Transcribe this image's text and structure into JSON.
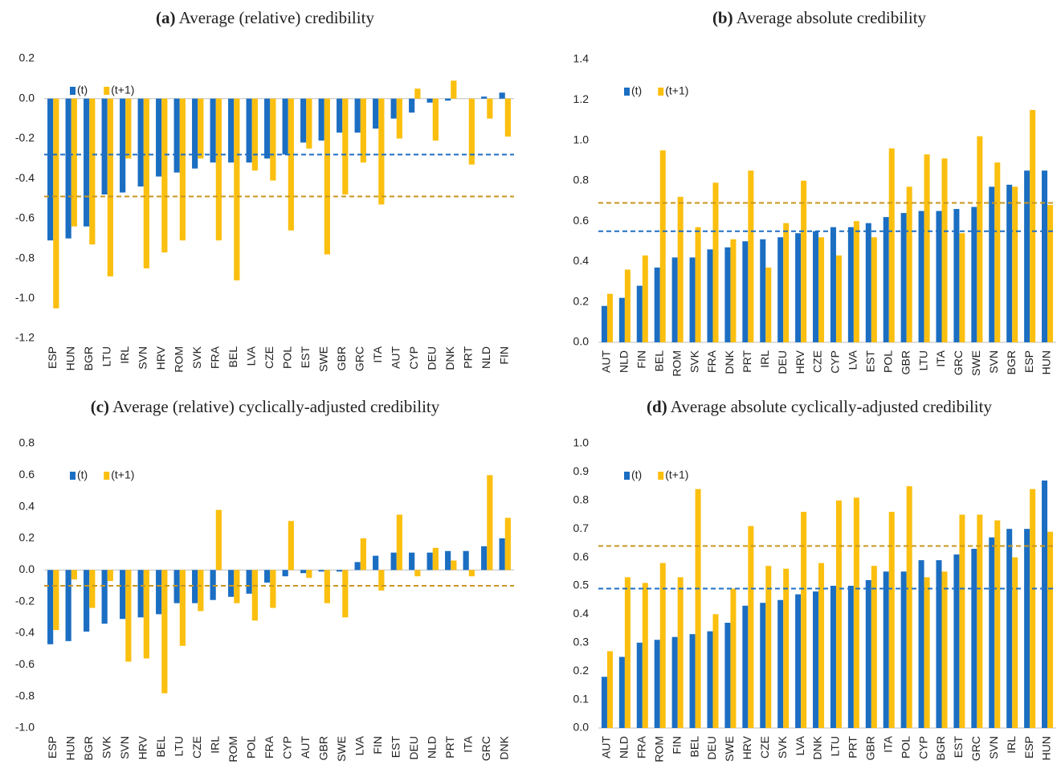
{
  "chart_data": [
    {
      "type": "bar",
      "panel": "(a)",
      "title": "Average (relative) credibility",
      "categories": [
        "ESP",
        "HUN",
        "BGR",
        "LTU",
        "IRL",
        "SVN",
        "HRV",
        "ROM",
        "SVK",
        "FRA",
        "BEL",
        "LVA",
        "CZE",
        "POL",
        "EST",
        "SWE",
        "GBR",
        "GRC",
        "ITA",
        "AUT",
        "CYP",
        "DEU",
        "DNK",
        "PRT",
        "NLD",
        "FIN"
      ],
      "series": [
        {
          "name": "(t)",
          "color": "#1b6ec2",
          "mean": -0.28,
          "mean_color": "#1f6fc4",
          "values": [
            -0.71,
            -0.7,
            -0.64,
            -0.48,
            -0.47,
            -0.44,
            -0.39,
            -0.37,
            -0.35,
            -0.32,
            -0.32,
            -0.32,
            -0.3,
            -0.28,
            -0.22,
            -0.21,
            -0.17,
            -0.17,
            -0.15,
            -0.1,
            -0.07,
            -0.02,
            -0.01,
            0.0,
            0.01,
            0.03
          ]
        },
        {
          "name": "(t+1)",
          "color": "#fbbf0f",
          "mean": -0.49,
          "mean_color": "#c8961e",
          "values": [
            -1.05,
            -0.64,
            -0.73,
            -0.89,
            -0.3,
            -0.85,
            -0.77,
            -0.71,
            -0.3,
            -0.71,
            -0.91,
            -0.36,
            -0.41,
            -0.66,
            -0.25,
            -0.78,
            -0.48,
            -0.32,
            -0.53,
            -0.2,
            0.05,
            -0.21,
            0.09,
            -0.33,
            -0.1,
            -0.19
          ]
        }
      ],
      "ylim": [
        -1.2,
        0.2
      ],
      "yticks": [
        -1.2,
        {
          "value": -1.0,
          "label": "-1.0"
        },
        -0.8,
        -0.6,
        -0.4,
        -0.2,
        {
          "value": 0,
          "label": "0.0"
        },
        0.2
      ],
      "legend": "upper left"
    },
    {
      "type": "bar",
      "panel": "(b)",
      "title": "Average absolute credibility",
      "categories": [
        "AUT",
        "NLD",
        "FIN",
        "BEL",
        "ROM",
        "SVK",
        "FRA",
        "DNK",
        "PRT",
        "IRL",
        "DEU",
        "HRV",
        "CZE",
        "CYP",
        "LVA",
        "EST",
        "POL",
        "GBR",
        "LTU",
        "ITA",
        "GRC",
        "SWE",
        "SVN",
        "BGR",
        "ESP",
        "HUN"
      ],
      "series": [
        {
          "name": "(t)",
          "color": "#1b6ec2",
          "mean": 0.55,
          "mean_color": "#1f6fc4",
          "values": [
            0.18,
            0.22,
            0.28,
            0.37,
            0.42,
            0.42,
            0.46,
            0.47,
            0.5,
            0.51,
            0.52,
            0.54,
            0.55,
            0.57,
            0.57,
            0.59,
            0.62,
            0.64,
            0.65,
            0.65,
            0.66,
            0.67,
            0.77,
            0.78,
            0.85,
            0.85
          ]
        },
        {
          "name": "(t+1)",
          "color": "#fbbf0f",
          "mean": 0.69,
          "mean_color": "#c8961e",
          "values": [
            0.24,
            0.36,
            0.43,
            0.95,
            0.72,
            0.57,
            0.79,
            0.51,
            0.85,
            0.37,
            0.59,
            0.8,
            0.52,
            0.43,
            0.6,
            0.52,
            0.96,
            0.77,
            0.93,
            0.91,
            0.54,
            1.02,
            0.89,
            0.77,
            1.15,
            0.68
          ]
        }
      ],
      "ylim": [
        0,
        1.4
      ],
      "yticks": [
        {
          "value": 0,
          "label": "0.0"
        },
        0.2,
        0.4,
        0.6,
        0.8,
        {
          "value": 1.0,
          "label": "1.0"
        },
        1.2,
        1.4
      ],
      "legend": "upper left"
    },
    {
      "type": "bar",
      "panel": "(c)",
      "title": "Average (relative) cyclically-adjusted credibility",
      "categories": [
        "ESP",
        "HUN",
        "BGR",
        "SVK",
        "SVN",
        "HRV",
        "BEL",
        "LTU",
        "CZE",
        "IRL",
        "ROM",
        "POL",
        "FRA",
        "CYP",
        "AUT",
        "GBR",
        "SWE",
        "LVA",
        "FIN",
        "EST",
        "DEU",
        "NLD",
        "PRT",
        "ITA",
        "GRC",
        "DNK"
      ],
      "series": [
        {
          "name": "(t)",
          "color": "#1b6ec2",
          "mean": -0.1,
          "mean_color": "#1f6fc4",
          "values": [
            -0.47,
            -0.45,
            -0.39,
            -0.34,
            -0.31,
            -0.3,
            -0.28,
            -0.21,
            -0.21,
            -0.19,
            -0.17,
            -0.15,
            -0.08,
            -0.04,
            -0.02,
            -0.01,
            -0.01,
            0.05,
            0.09,
            0.11,
            0.11,
            0.11,
            0.12,
            0.12,
            0.15,
            0.2
          ]
        },
        {
          "name": "(t+1)",
          "color": "#fbbf0f",
          "mean": -0.1,
          "mean_color": "#c8961e",
          "values": [
            -0.38,
            -0.06,
            -0.24,
            -0.07,
            -0.58,
            -0.56,
            -0.78,
            -0.48,
            -0.26,
            0.38,
            -0.21,
            -0.32,
            -0.24,
            0.31,
            -0.05,
            -0.21,
            -0.3,
            0.2,
            -0.13,
            0.35,
            -0.04,
            0.14,
            0.06,
            -0.04,
            0.6,
            0.33
          ]
        }
      ],
      "ylim": [
        -1.0,
        0.8
      ],
      "yticks": [
        {
          "value": -1.0,
          "label": "-1.0"
        },
        -0.8,
        -0.6,
        -0.4,
        -0.2,
        {
          "value": 0,
          "label": "0.0"
        },
        0.2,
        0.4,
        0.6,
        0.8
      ],
      "legend": "upper left"
    },
    {
      "type": "bar",
      "panel": "(d)",
      "title": "Average absolute cyclically-adjusted credibility",
      "categories": [
        "AUT",
        "NLD",
        "FRA",
        "ROM",
        "FIN",
        "BEL",
        "DEU",
        "SWE",
        "HRV",
        "CZE",
        "SVK",
        "LVA",
        "DNK",
        "LTU",
        "PRT",
        "GBR",
        "ITA",
        "POL",
        "CYP",
        "BGR",
        "EST",
        "GRC",
        "SVN",
        "IRL",
        "ESP",
        "HUN"
      ],
      "series": [
        {
          "name": "(t)",
          "color": "#1b6ec2",
          "mean": 0.49,
          "mean_color": "#1f6fc4",
          "values": [
            0.18,
            0.25,
            0.3,
            0.31,
            0.32,
            0.33,
            0.34,
            0.37,
            0.43,
            0.44,
            0.45,
            0.47,
            0.48,
            0.5,
            0.5,
            0.52,
            0.55,
            0.55,
            0.59,
            0.59,
            0.61,
            0.63,
            0.67,
            0.7,
            0.7,
            0.87
          ]
        },
        {
          "name": "(t+1)",
          "color": "#fbbf0f",
          "mean": 0.64,
          "mean_color": "#c8961e",
          "values": [
            0.27,
            0.53,
            0.51,
            0.58,
            0.53,
            0.84,
            0.4,
            0.49,
            0.71,
            0.57,
            0.56,
            0.76,
            0.58,
            0.8,
            0.81,
            0.57,
            0.76,
            0.85,
            0.53,
            0.55,
            0.75,
            0.75,
            0.73,
            0.6,
            0.84,
            0.69
          ]
        }
      ],
      "ylim": [
        0,
        1.0
      ],
      "yticks": [
        {
          "value": 0,
          "label": "0.0"
        },
        0.1,
        0.2,
        0.3,
        0.4,
        0.5,
        0.6,
        0.7,
        0.8,
        0.9,
        {
          "value": 1.0,
          "label": "1.0"
        }
      ],
      "legend": "upper left"
    }
  ]
}
